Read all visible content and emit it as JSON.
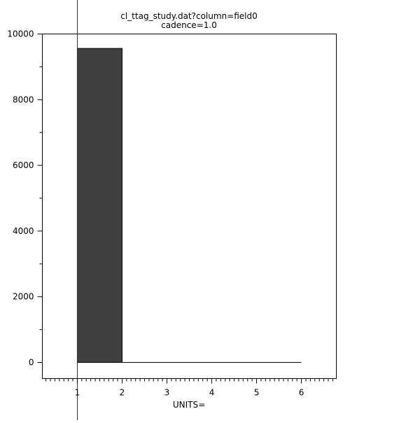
{
  "chart_data": {
    "type": "bar",
    "subtype": "histogram",
    "title": "cl_ttag_study.dat?column=field0",
    "subtitle": "cadence=1.0",
    "xlabel": "UNITS=",
    "ylabel": "",
    "bin_edges": [
      1,
      2,
      3,
      4,
      5,
      6
    ],
    "values": [
      9560,
      0,
      0,
      0,
      0
    ],
    "xlim": [
      0.22,
      6.78
    ],
    "ylim": [
      -490,
      10000
    ],
    "x_ticks": [
      "1",
      "2",
      "3",
      "4",
      "5",
      "6"
    ],
    "y_ticks": [
      "0",
      "2000",
      "4000",
      "6000",
      "8000",
      "10000"
    ],
    "marker_line_x": 1,
    "grid": false,
    "bar_color": "#404040"
  }
}
